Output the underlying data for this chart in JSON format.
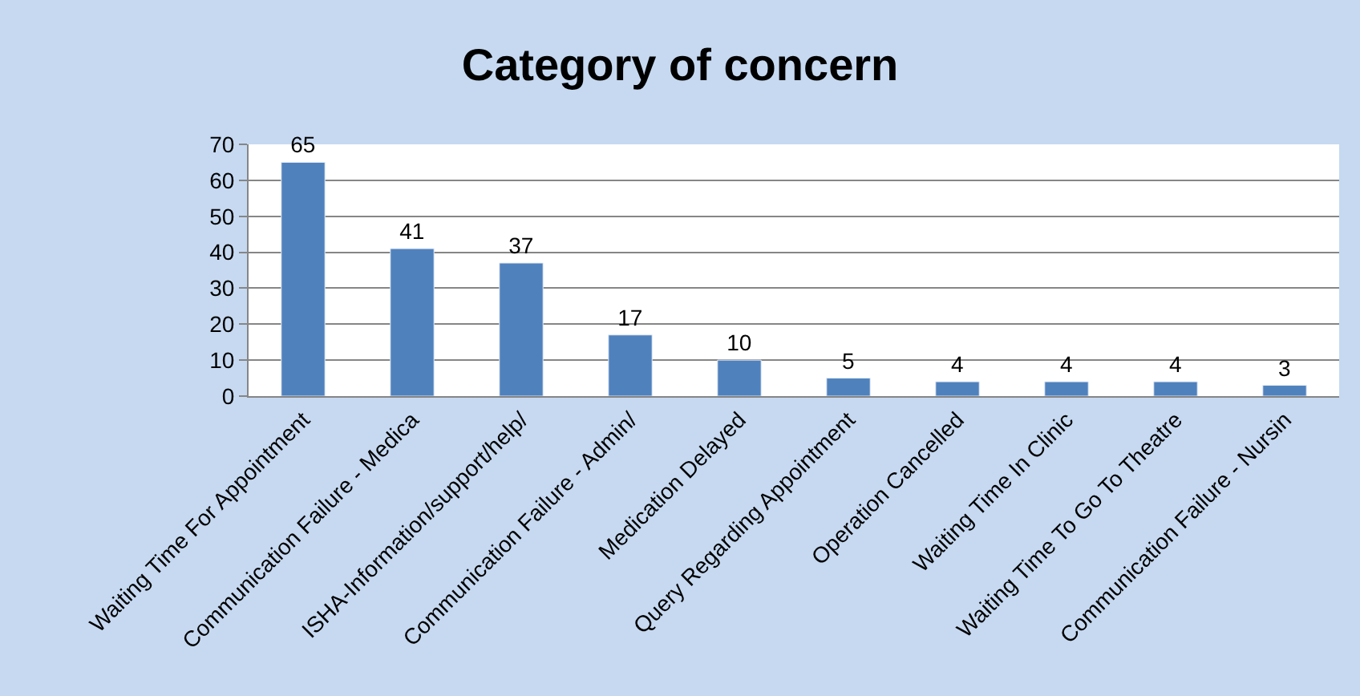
{
  "chart_data": {
    "type": "bar",
    "title": "Category of concern",
    "categories": [
      "Waiting Time For Appointment",
      "Communication Failure - Medica",
      "ISHA-Information/support/help/",
      "Communication Failure - Admin/",
      "Medication Delayed",
      "Query Regarding Appointment",
      "Operation Cancelled",
      "Waiting Time In Clinic",
      "Waiting Time To Go To Theatre",
      "Communication Failure - Nursin"
    ],
    "values": [
      65,
      41,
      37,
      17,
      10,
      5,
      4,
      4,
      4,
      3
    ],
    "color": "#4f81bd",
    "ylim": [
      0,
      70
    ],
    "yticks": [
      0,
      10,
      20,
      30,
      40,
      50,
      60,
      70
    ],
    "grid": "y",
    "data_labels": true
  }
}
